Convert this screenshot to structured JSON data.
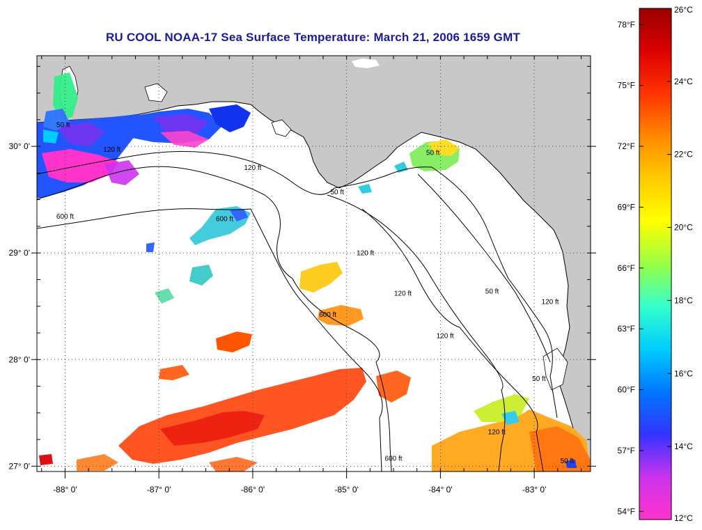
{
  "title": "RU COOL  NOAA-17  Sea Surface Temperature:  March 21, 2006 1659 GMT",
  "map": {
    "lon_range": [
      -88.3,
      -82.4
    ],
    "lat_range": [
      26.95,
      30.85
    ],
    "lon_ticks": [
      {
        "value": -88,
        "label": "-88° 0'"
      },
      {
        "value": -87,
        "label": "-87° 0'"
      },
      {
        "value": -86,
        "label": "-86° 0'"
      },
      {
        "value": -85,
        "label": "-85° 0'"
      },
      {
        "value": -84,
        "label": "-84° 0'"
      },
      {
        "value": -83,
        "label": "-83° 0'"
      }
    ],
    "lat_ticks": [
      {
        "value": 27,
        "label": "27° 0'"
      },
      {
        "value": 28,
        "label": "28° 0'"
      },
      {
        "value": 29,
        "label": "29° 0'"
      },
      {
        "value": 30,
        "label": "30° 0'"
      }
    ],
    "grid": "dotted",
    "land_color": "#c8c8c8",
    "cloud_color": "#ffffff",
    "contour_labels": [
      {
        "text": "50 ft",
        "lon": -88.02,
        "lat": 30.18
      },
      {
        "text": "120 ft",
        "lon": -87.5,
        "lat": 29.95
      },
      {
        "text": "600 ft",
        "lon": -88.0,
        "lat": 29.32
      },
      {
        "text": "120 ft",
        "lon": -86.0,
        "lat": 29.78
      },
      {
        "text": "600 ft",
        "lon": -86.3,
        "lat": 29.3
      },
      {
        "text": "50 ft",
        "lon": -85.1,
        "lat": 29.55
      },
      {
        "text": "50 ft",
        "lon": -84.08,
        "lat": 29.92
      },
      {
        "text": "120 ft",
        "lon": -84.8,
        "lat": 28.98
      },
      {
        "text": "120 ft",
        "lon": -84.4,
        "lat": 28.6
      },
      {
        "text": "600 ft",
        "lon": -85.2,
        "lat": 28.4
      },
      {
        "text": "120 ft",
        "lon": -83.95,
        "lat": 28.2
      },
      {
        "text": "50 ft",
        "lon": -83.45,
        "lat": 28.62
      },
      {
        "text": "120 ft",
        "lon": -82.83,
        "lat": 28.52
      },
      {
        "text": "50 ft",
        "lon": -82.95,
        "lat": 27.8
      },
      {
        "text": "120 ft",
        "lon": -83.4,
        "lat": 27.3
      },
      {
        "text": "50 ft",
        "lon": -82.65,
        "lat": 27.03
      },
      {
        "text": "600 ft",
        "lon": -84.5,
        "lat": 27.05
      }
    ]
  },
  "colorbar": {
    "colors": [
      "#ff33cc",
      "#cc33ee",
      "#3333ff",
      "#0077ff",
      "#00ccff",
      "#33ffcc",
      "#99ff44",
      "#ffff00",
      "#ffcc00",
      "#ff8800",
      "#ff3300",
      "#dd0000",
      "#990000"
    ],
    "celsius_range": [
      12,
      26
    ],
    "fahrenheit_range": [
      53.6,
      78.8
    ],
    "celsius_ticks": [
      {
        "value": 12,
        "label": "12°C"
      },
      {
        "value": 14,
        "label": "14°C"
      },
      {
        "value": 16,
        "label": "16°C"
      },
      {
        "value": 18,
        "label": "18°C"
      },
      {
        "value": 20,
        "label": "20°C"
      },
      {
        "value": 22,
        "label": "22°C"
      },
      {
        "value": 24,
        "label": "24°C"
      },
      {
        "value": 26,
        "label": "26°C"
      }
    ],
    "fahrenheit_ticks": [
      {
        "value": 54,
        "label": "54°F"
      },
      {
        "value": 57,
        "label": "57°F"
      },
      {
        "value": 60,
        "label": "60°F"
      },
      {
        "value": 63,
        "label": "63°F"
      },
      {
        "value": 66,
        "label": "66°F"
      },
      {
        "value": 69,
        "label": "69°F"
      },
      {
        "value": 72,
        "label": "72°F"
      },
      {
        "value": 75,
        "label": "75°F"
      },
      {
        "value": 78,
        "label": "78°F"
      }
    ]
  }
}
